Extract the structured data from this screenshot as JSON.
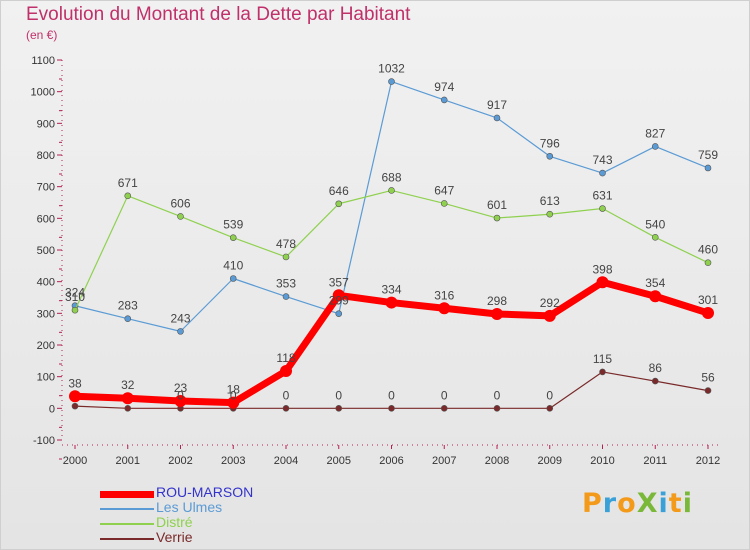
{
  "title": "Evolution du Montant de la Dette par Habitant",
  "unit_label": "(en €)",
  "logo": {
    "text": "ProXiti",
    "letters": [
      {
        "ch": "P",
        "color": "#f39a1a"
      },
      {
        "ch": "r",
        "color": "#3aa0d8"
      },
      {
        "ch": "o",
        "color": "#f39a1a"
      },
      {
        "ch": "X",
        "color": "#7ab83a"
      },
      {
        "ch": "i",
        "color": "#3aa0d8"
      },
      {
        "ch": "t",
        "color": "#f39a1a"
      },
      {
        "ch": "i",
        "color": "#7ab83a"
      }
    ]
  },
  "chart_data": {
    "type": "line",
    "title": "Evolution du Montant de la Dette par Habitant",
    "ylabel": "(en €)",
    "xlabel": "",
    "categories": [
      "2000",
      "2001",
      "2002",
      "2003",
      "2004",
      "2005",
      "2006",
      "2007",
      "2008",
      "2009",
      "2010",
      "2011",
      "2012"
    ],
    "ylim": [
      -100,
      1100
    ],
    "yticks": [
      -100,
      0,
      100,
      200,
      300,
      400,
      500,
      600,
      700,
      800,
      900,
      1000,
      1100
    ],
    "grid": false,
    "legend_position": "bottom-left",
    "series": [
      {
        "name": "ROU-MARSON",
        "color": "#ff0000",
        "label_color": "#3333cc",
        "emphasis": true,
        "values": [
          38,
          32,
          23,
          18,
          118,
          357,
          334,
          316,
          298,
          292,
          398,
          354,
          301
        ],
        "labels": [
          "38",
          "32",
          "23",
          "18",
          "118",
          "357",
          "334",
          "316",
          "298",
          "292",
          "398",
          "354",
          "301"
        ]
      },
      {
        "name": "Les Ulmes",
        "color": "#5b9bd5",
        "label_color": "#5b9bd5",
        "emphasis": false,
        "values": [
          324,
          283,
          243,
          410,
          353,
          299,
          1032,
          974,
          917,
          796,
          743,
          827,
          759
        ],
        "labels": [
          "324",
          "283",
          "243",
          "410",
          "353",
          "299",
          "1032",
          "974",
          "917",
          "796",
          "743",
          "827",
          "759"
        ]
      },
      {
        "name": "Distré",
        "color": "#8fd14f",
        "label_color": "#8fd14f",
        "emphasis": false,
        "values": [
          310,
          671,
          606,
          539,
          478,
          646,
          688,
          647,
          601,
          613,
          631,
          540,
          460
        ],
        "labels": [
          "310",
          "671",
          "606",
          "539",
          "478",
          "646",
          "688",
          "647",
          "601",
          "613",
          "631",
          "540",
          "460"
        ]
      },
      {
        "name": "Verrie",
        "color": "#7a2a2a",
        "label_color": "#7a2a2a",
        "emphasis": false,
        "values": [
          7,
          0,
          0,
          0,
          0,
          0,
          0,
          0,
          0,
          0,
          115,
          86,
          56
        ],
        "labels": [
          "",
          "",
          "0",
          "0",
          "0",
          "0",
          "0",
          "0",
          "0",
          "0",
          "115",
          "86",
          "56"
        ]
      }
    ]
  }
}
